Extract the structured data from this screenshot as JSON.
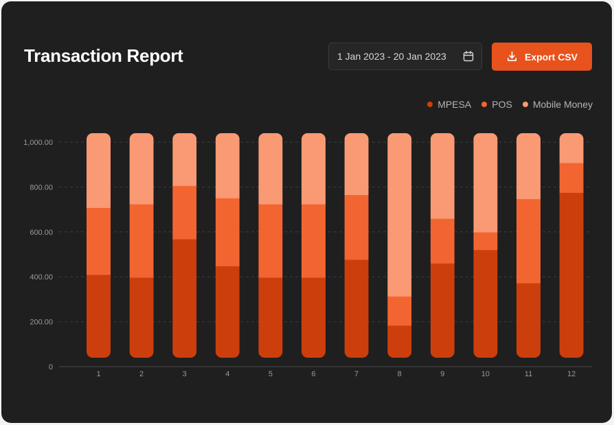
{
  "header": {
    "title": "Transaction Report",
    "date_range": "1 Jan 2023 - 20 Jan 2023",
    "export_label": "Export CSV"
  },
  "colors": {
    "mpesa": "#cc3f0c",
    "pos": "#f26531",
    "mobile_money": "#f99a74",
    "accent": "#e8521d",
    "background": "#1f1f1f"
  },
  "legend": {
    "items": [
      {
        "label": "MPESA"
      },
      {
        "label": "POS"
      },
      {
        "label": "Mobile Money"
      }
    ]
  },
  "chart_data": {
    "type": "bar",
    "stacked": true,
    "title": "Transaction Report",
    "xlabel": "",
    "ylabel": "",
    "categories": [
      "1",
      "2",
      "3",
      "4",
      "5",
      "6",
      "7",
      "8",
      "9",
      "10",
      "11",
      "12"
    ],
    "series": [
      {
        "name": "MPESA",
        "values": [
          385,
          372,
          550,
          425,
          372,
          372,
          455,
          150,
          438,
          500,
          346,
          765
        ]
      },
      {
        "name": "POS",
        "values": [
          310,
          340,
          247,
          315,
          340,
          340,
          300,
          135,
          207,
          82,
          390,
          138
        ]
      },
      {
        "name": "Mobile Money",
        "values": [
          345,
          328,
          243,
          300,
          328,
          328,
          285,
          755,
          395,
          458,
          304,
          137
        ]
      }
    ],
    "ylim": [
      0,
      1040
    ],
    "yticks": [
      0,
      200,
      400,
      600,
      800,
      1000
    ],
    "ytick_labels": [
      "0",
      "200.00",
      "400.00",
      "600.00",
      "800.00",
      "1,000.00"
    ],
    "grid": true,
    "legend_position": "top-right"
  }
}
